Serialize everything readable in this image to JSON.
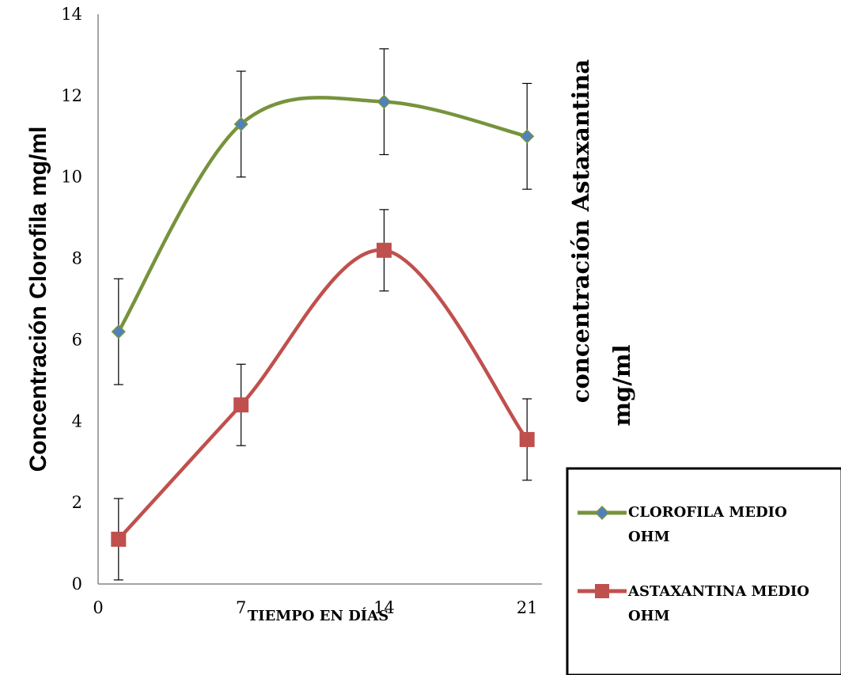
{
  "chart_data": {
    "type": "line",
    "x": [
      1,
      7,
      14,
      21
    ],
    "x_ticks": [
      "0",
      "7",
      "14",
      "21"
    ],
    "xlabel": "TIEMPO EN DÍAS",
    "ylabel_left": "Concentración Clorofila mg/ml",
    "ylabel_right_line1": "concentración Astaxantina",
    "ylabel_right_line2": "mg/ml",
    "y_ticks": [
      "0",
      "2",
      "4",
      "6",
      "8",
      "10",
      "12",
      "14"
    ],
    "ylim": [
      0,
      14
    ],
    "xlim": [
      0,
      22
    ],
    "smooth": true,
    "grid": false,
    "legend_position": "bottom-right",
    "series": [
      {
        "name_line1": "CLOROFILA MEDIO",
        "name_line2": "OHM",
        "color": "#77933C",
        "marker": "diamond",
        "marker_fill": "#4F81BD",
        "values": [
          6.2,
          11.3,
          11.85,
          11.0
        ],
        "errors": [
          1.3,
          1.3,
          1.3,
          1.3
        ]
      },
      {
        "name_line1": "ASTAXANTINA MEDIO",
        "name_line2": "OHM",
        "color": "#C0504D",
        "marker": "square",
        "marker_fill": "#C0504D",
        "values": [
          1.1,
          4.4,
          8.2,
          3.55
        ],
        "errors": [
          1.0,
          1.0,
          1.0,
          1.0
        ]
      }
    ]
  }
}
